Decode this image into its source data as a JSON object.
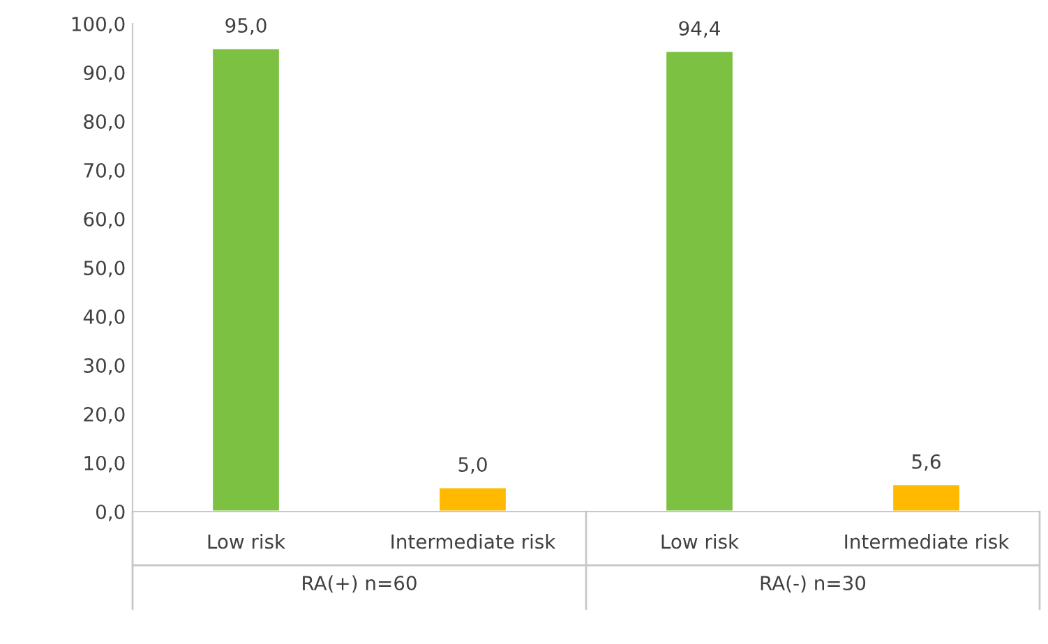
{
  "chart_data": {
    "type": "bar",
    "categories": [
      "Low risk",
      "Intermediate risk",
      "Low risk",
      "Intermediate risk"
    ],
    "values": [
      95.0,
      5.0,
      94.4,
      5.6
    ],
    "colors": [
      "#7cc142",
      "#ffb900",
      "#7cc142",
      "#ffb900"
    ],
    "value_labels": [
      "95,0",
      "5,0",
      "94,4",
      "5,6"
    ],
    "annotations": [
      "RA(+) n=60",
      "RA(-) n=30"
    ],
    "ylim": [
      0,
      100
    ],
    "yticks": [
      {
        "value": 0,
        "label": "0,0"
      },
      {
        "value": 10,
        "label": "10,0"
      },
      {
        "value": 20,
        "label": "20,0"
      },
      {
        "value": 30,
        "label": "30,0"
      },
      {
        "value": 40,
        "label": "40,0"
      },
      {
        "value": 50,
        "label": "50,0"
      },
      {
        "value": 60,
        "label": "60,0"
      },
      {
        "value": 70,
        "label": "70,0"
      },
      {
        "value": 80,
        "label": "80,0"
      },
      {
        "value": 90,
        "label": "90,0"
      },
      {
        "value": 100,
        "label": "100,0"
      }
    ],
    "grid": false,
    "legend": false
  }
}
